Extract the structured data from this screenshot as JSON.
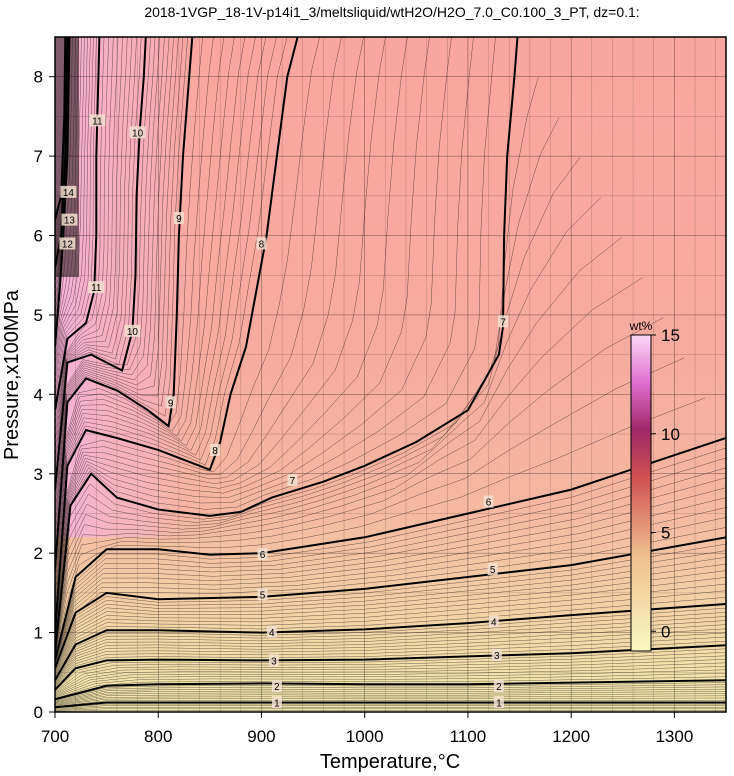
{
  "chart_data": {
    "type": "heatmap",
    "title": "2018-1VGP_18-1V-p14i1_3/meltsliquid/wtH2O/H2O_7.0_C0.100_3_PT, dz=0.1:",
    "xlabel": "Temperature,°C",
    "ylabel": "Pressure,x100MPa",
    "xlim": [
      700,
      1350
    ],
    "ylim": [
      0,
      8.5
    ],
    "x_ticks": [
      "700",
      "800",
      "900",
      "1000",
      "1100",
      "1200",
      "1300"
    ],
    "y_ticks": [
      "0",
      "1",
      "2",
      "3",
      "4",
      "5",
      "6",
      "7",
      "8"
    ],
    "grid": true,
    "colorbar": {
      "unit": "wt%",
      "range": [
        -1,
        15
      ],
      "ticks": [
        "0",
        "5",
        "10",
        "15"
      ],
      "placement": "right-inside"
    },
    "contours": [
      {
        "level": 1,
        "label": "1",
        "points": [
          [
            700,
            0.06
          ],
          [
            750,
            0.12
          ],
          [
            800,
            0.12
          ],
          [
            900,
            0.12
          ],
          [
            1000,
            0.12
          ],
          [
            1100,
            0.12
          ],
          [
            1200,
            0.12
          ],
          [
            1350,
            0.12
          ]
        ],
        "labels_at": [
          [
            915,
            0.12
          ],
          [
            1130,
            0.12
          ]
        ]
      },
      {
        "level": 2,
        "label": "2",
        "points": [
          [
            700,
            0.16
          ],
          [
            750,
            0.33
          ],
          [
            800,
            0.35
          ],
          [
            900,
            0.36
          ],
          [
            1000,
            0.35
          ],
          [
            1100,
            0.35
          ],
          [
            1200,
            0.37
          ],
          [
            1350,
            0.4
          ]
        ],
        "labels_at": [
          [
            915,
            0.33
          ],
          [
            1130,
            0.33
          ]
        ]
      },
      {
        "level": 3,
        "label": "3",
        "points": [
          [
            700,
            0.28
          ],
          [
            720,
            0.55
          ],
          [
            750,
            0.65
          ],
          [
            800,
            0.66
          ],
          [
            900,
            0.65
          ],
          [
            1000,
            0.66
          ],
          [
            1100,
            0.7
          ],
          [
            1200,
            0.74
          ],
          [
            1350,
            0.84
          ]
        ],
        "labels_at": [
          [
            912,
            0.65
          ],
          [
            1128,
            0.72
          ]
        ]
      },
      {
        "level": 4,
        "label": "4",
        "points": [
          [
            700,
            0.4
          ],
          [
            720,
            0.85
          ],
          [
            750,
            1.03
          ],
          [
            800,
            1.03
          ],
          [
            900,
            1.0
          ],
          [
            1000,
            1.04
          ],
          [
            1100,
            1.12
          ],
          [
            1200,
            1.22
          ],
          [
            1350,
            1.36
          ]
        ],
        "labels_at": [
          [
            910,
            1.01
          ],
          [
            1125,
            1.14
          ]
        ]
      },
      {
        "level": 5,
        "label": "5",
        "points": [
          [
            700,
            0.55
          ],
          [
            720,
            1.25
          ],
          [
            750,
            1.5
          ],
          [
            800,
            1.42
          ],
          [
            900,
            1.45
          ],
          [
            1000,
            1.55
          ],
          [
            1100,
            1.7
          ],
          [
            1200,
            1.85
          ],
          [
            1350,
            2.2
          ]
        ],
        "labels_at": [
          [
            901,
            1.48
          ],
          [
            1124,
            1.8
          ]
        ]
      },
      {
        "level": 6,
        "label": "6",
        "points": [
          [
            700,
            0.65
          ],
          [
            720,
            1.7
          ],
          [
            750,
            2.05
          ],
          [
            800,
            2.05
          ],
          [
            850,
            1.98
          ],
          [
            900,
            2.0
          ],
          [
            1000,
            2.2
          ],
          [
            1100,
            2.5
          ],
          [
            1200,
            2.8
          ],
          [
            1350,
            3.45
          ]
        ],
        "labels_at": [
          [
            901,
            1.99
          ],
          [
            1120,
            2.65
          ]
        ]
      },
      {
        "level": 7,
        "label": "7",
        "points": [
          [
            700,
            0.75
          ],
          [
            715,
            2.6
          ],
          [
            735,
            3.0
          ],
          [
            760,
            2.7
          ],
          [
            800,
            2.55
          ],
          [
            850,
            2.47
          ],
          [
            880,
            2.52
          ],
          [
            910,
            2.7
          ],
          [
            960,
            2.9
          ],
          [
            1000,
            3.1
          ],
          [
            1050,
            3.4
          ],
          [
            1100,
            3.8
          ],
          [
            1130,
            4.5
          ],
          [
            1134,
            4.85
          ],
          [
            1135,
            6.0
          ],
          [
            1138,
            7.0
          ],
          [
            1145,
            8.0
          ],
          [
            1148,
            8.5
          ]
        ],
        "labels_at": [
          [
            930,
            2.92
          ],
          [
            1134,
            4.92
          ]
        ]
      },
      {
        "level": 8,
        "label": "8",
        "points": [
          [
            700,
            1.0
          ],
          [
            712,
            3.1
          ],
          [
            730,
            3.55
          ],
          [
            760,
            3.45
          ],
          [
            800,
            3.3
          ],
          [
            840,
            3.1
          ],
          [
            850,
            3.05
          ],
          [
            860,
            3.4
          ],
          [
            870,
            4.0
          ],
          [
            885,
            4.6
          ],
          [
            895,
            5.3
          ],
          [
            905,
            6.0
          ],
          [
            915,
            7.0
          ],
          [
            925,
            8.0
          ],
          [
            935,
            8.5
          ]
        ],
        "labels_at": [
          [
            855,
            3.3
          ],
          [
            900,
            5.9
          ]
        ]
      },
      {
        "level": 9,
        "label": "9",
        "points": [
          [
            700,
            1.8
          ],
          [
            712,
            3.9
          ],
          [
            730,
            4.2
          ],
          [
            760,
            4.05
          ],
          [
            790,
            3.8
          ],
          [
            810,
            3.6
          ],
          [
            815,
            4.0
          ],
          [
            818,
            5.0
          ],
          [
            820,
            6.0
          ],
          [
            824,
            7.0
          ],
          [
            830,
            8.0
          ],
          [
            833,
            8.5
          ]
        ],
        "labels_at": [
          [
            812,
            3.9
          ],
          [
            820,
            6.22
          ]
        ]
      },
      {
        "level": 10,
        "label": "10",
        "points": [
          [
            700,
            2.8
          ],
          [
            712,
            4.4
          ],
          [
            735,
            4.5
          ],
          [
            765,
            4.3
          ],
          [
            775,
            4.8
          ],
          [
            778,
            5.5
          ],
          [
            779,
            6.5
          ],
          [
            782,
            7.3
          ],
          [
            786,
            8.0
          ],
          [
            788,
            8.5
          ]
        ],
        "labels_at": [
          [
            775,
            4.8
          ],
          [
            780,
            7.3
          ]
        ]
      },
      {
        "level": 11,
        "label": "11",
        "points": [
          [
            700,
            3.8
          ],
          [
            712,
            4.7
          ],
          [
            730,
            4.9
          ],
          [
            738,
            5.3
          ],
          [
            740,
            6.0
          ],
          [
            740,
            7.0
          ],
          [
            742,
            8.0
          ],
          [
            743,
            8.5
          ]
        ],
        "labels_at": [
          [
            740,
            5.35
          ],
          [
            741,
            7.45
          ]
        ]
      },
      {
        "level": 12,
        "label": "12",
        "points": [
          [
            700,
            4.6
          ],
          [
            705,
            5.4
          ],
          [
            708,
            6.0
          ],
          [
            712,
            7.0
          ],
          [
            714,
            8.5
          ]
        ],
        "labels_at": [
          [
            712,
            5.9
          ]
        ]
      },
      {
        "level": 13,
        "label": "13",
        "points": [
          [
            700,
            5.6
          ],
          [
            706,
            6.0
          ],
          [
            710,
            7.0
          ],
          [
            712,
            8.5
          ]
        ],
        "labels_at": [
          [
            714,
            6.2
          ]
        ]
      },
      {
        "level": 14,
        "label": "14",
        "points": [
          [
            700,
            6.2
          ],
          [
            706,
            6.5
          ],
          [
            709,
            7.5
          ],
          [
            710,
            8.5
          ]
        ],
        "labels_at": [
          [
            713,
            6.55
          ]
        ]
      }
    ]
  }
}
